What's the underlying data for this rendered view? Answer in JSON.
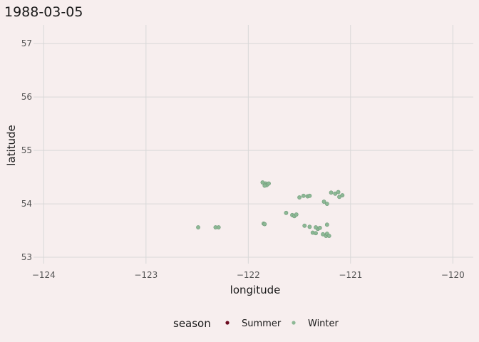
{
  "chart_data": {
    "type": "scatter",
    "title": "1988-03-05",
    "xlabel": "longitude",
    "ylabel": "latitude",
    "xlim": [
      -124.1,
      -119.8
    ],
    "ylim": [
      52.88,
      57.35
    ],
    "x_ticks": [
      -124,
      -123,
      -122,
      -121,
      -120
    ],
    "x_tick_labels": [
      "−124",
      "−123",
      "−122",
      "−121",
      "−120"
    ],
    "y_ticks": [
      53,
      54,
      55,
      56,
      57
    ],
    "y_tick_labels": [
      "53",
      "54",
      "55",
      "56",
      "57"
    ],
    "grid": true,
    "legend": {
      "title": "season",
      "position": "bottom",
      "entries": [
        {
          "label": "Summer",
          "color": "#6b0a1f"
        },
        {
          "label": "Winter",
          "color": "#8db895"
        }
      ]
    },
    "series": [
      {
        "name": "Summer",
        "color": "#6b0a1f",
        "points": []
      },
      {
        "name": "Winter",
        "color": "#8db895",
        "points": [
          [
            -122.49,
            53.56
          ],
          [
            -122.32,
            53.56
          ],
          [
            -122.29,
            53.56
          ],
          [
            -121.86,
            54.4
          ],
          [
            -121.83,
            54.38
          ],
          [
            -121.82,
            54.35
          ],
          [
            -121.8,
            54.38
          ],
          [
            -121.84,
            54.34
          ],
          [
            -121.85,
            53.63
          ],
          [
            -121.84,
            53.62
          ],
          [
            -121.63,
            53.83
          ],
          [
            -121.57,
            53.79
          ],
          [
            -121.55,
            53.77
          ],
          [
            -121.53,
            53.8
          ],
          [
            -121.5,
            54.12
          ],
          [
            -121.46,
            54.15
          ],
          [
            -121.42,
            54.14
          ],
          [
            -121.4,
            54.15
          ],
          [
            -121.45,
            53.59
          ],
          [
            -121.4,
            53.57
          ],
          [
            -121.37,
            53.46
          ],
          [
            -121.34,
            53.45
          ],
          [
            -121.32,
            53.53
          ],
          [
            -121.34,
            53.56
          ],
          [
            -121.3,
            53.55
          ],
          [
            -121.27,
            53.43
          ],
          [
            -121.24,
            53.4
          ],
          [
            -121.23,
            53.44
          ],
          [
            -121.21,
            53.4
          ],
          [
            -121.23,
            53.61
          ],
          [
            -121.26,
            54.04
          ],
          [
            -121.23,
            54.0
          ],
          [
            -121.19,
            54.21
          ],
          [
            -121.15,
            54.19
          ],
          [
            -121.12,
            54.22
          ],
          [
            -121.11,
            54.13
          ],
          [
            -121.08,
            54.16
          ]
        ]
      }
    ]
  }
}
